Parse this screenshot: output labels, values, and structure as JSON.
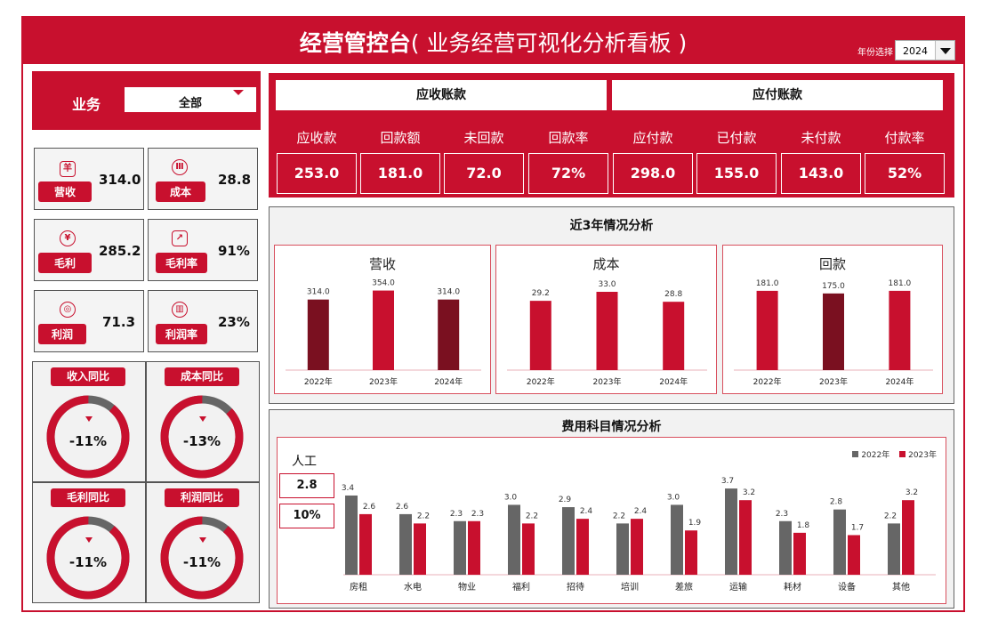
{
  "header": {
    "title_main": "经营管控台",
    "title_sub": "( 业务经营可视化分析看板 )",
    "year_label": "年份选择",
    "year_value": "2024"
  },
  "business": {
    "label": "业务",
    "value": "全部"
  },
  "kpis": [
    {
      "icon": "羊",
      "label": "营收",
      "value": "314.0"
    },
    {
      "icon": "Ⅲ",
      "label": "成本",
      "value": "28.8"
    },
    {
      "icon": "¥",
      "label": "毛利",
      "value": "285.2"
    },
    {
      "icon": "↗",
      "label": "毛利率",
      "value": "91%"
    },
    {
      "icon": "◎",
      "label": "利润",
      "value": "71.3"
    },
    {
      "icon": "▥",
      "label": "利润率",
      "value": "23%"
    }
  ],
  "yoy": [
    {
      "label": "收入同比",
      "value": "-11%",
      "fraction": 0.89
    },
    {
      "label": "成本同比",
      "value": "-13%",
      "fraction": 0.87
    },
    {
      "label": "毛利同比",
      "value": "-11%",
      "fraction": 0.89
    },
    {
      "label": "利润同比",
      "value": "-11%",
      "fraction": 0.89
    }
  ],
  "arap": {
    "ar_title": "应收账款",
    "ap_title": "应付账款",
    "columns": [
      {
        "title": "应收款",
        "value": "253.0"
      },
      {
        "title": "回款额",
        "value": "181.0"
      },
      {
        "title": "未回款",
        "value": "72.0"
      },
      {
        "title": "回款率",
        "value": "72%"
      },
      {
        "title": "应付款",
        "value": "298.0"
      },
      {
        "title": "已付款",
        "value": "155.0"
      },
      {
        "title": "未付款",
        "value": "143.0"
      },
      {
        "title": "付款率",
        "value": "52%"
      }
    ]
  },
  "trend_title": "近3年情况分析",
  "expense_title": "费用科目情况分析",
  "expense_side": {
    "label": "人工",
    "value1": "2.8",
    "value2": "10%"
  },
  "colors": {
    "red": "#c8102e",
    "gray": "#666666",
    "darkred": "#7a1020"
  },
  "chart_data": [
    {
      "type": "bar",
      "title": "营收",
      "categories": [
        "2022年",
        "2023年",
        "2024年"
      ],
      "values": [
        314.0,
        354.0,
        314.0
      ],
      "labels": [
        "314.0",
        "354.0",
        "314.0"
      ],
      "ylim": [
        0,
        380
      ]
    },
    {
      "type": "bar",
      "title": "成本",
      "categories": [
        "2022年",
        "2023年",
        "2024年"
      ],
      "values": [
        29.2,
        33.0,
        28.8
      ],
      "labels": [
        "29.2",
        "33.0",
        "28.8"
      ],
      "ylim": [
        0,
        36
      ]
    },
    {
      "type": "bar",
      "title": "回款",
      "categories": [
        "2022年",
        "2023年",
        "2024年"
      ],
      "values": [
        181.0,
        175.0,
        181.0
      ],
      "labels": [
        "181.0",
        "175.0",
        "181.0"
      ],
      "ylim": [
        0,
        195
      ]
    },
    {
      "type": "bar",
      "categories": [
        "房租",
        "水电",
        "物业",
        "福利",
        "招待",
        "培训",
        "差旅",
        "运输",
        "耗材",
        "设备",
        "其他"
      ],
      "series": [
        {
          "name": "2022年",
          "values": [
            3.4,
            2.6,
            2.3,
            3.0,
            2.9,
            2.2,
            3.0,
            3.7,
            2.3,
            2.8,
            2.2
          ]
        },
        {
          "name": "2023年",
          "values": [
            2.6,
            2.2,
            2.3,
            2.2,
            2.4,
            2.4,
            1.9,
            3.2,
            1.8,
            1.7,
            3.2
          ]
        }
      ],
      "legend": "top-right",
      "ylim": [
        0,
        4.2
      ]
    }
  ]
}
